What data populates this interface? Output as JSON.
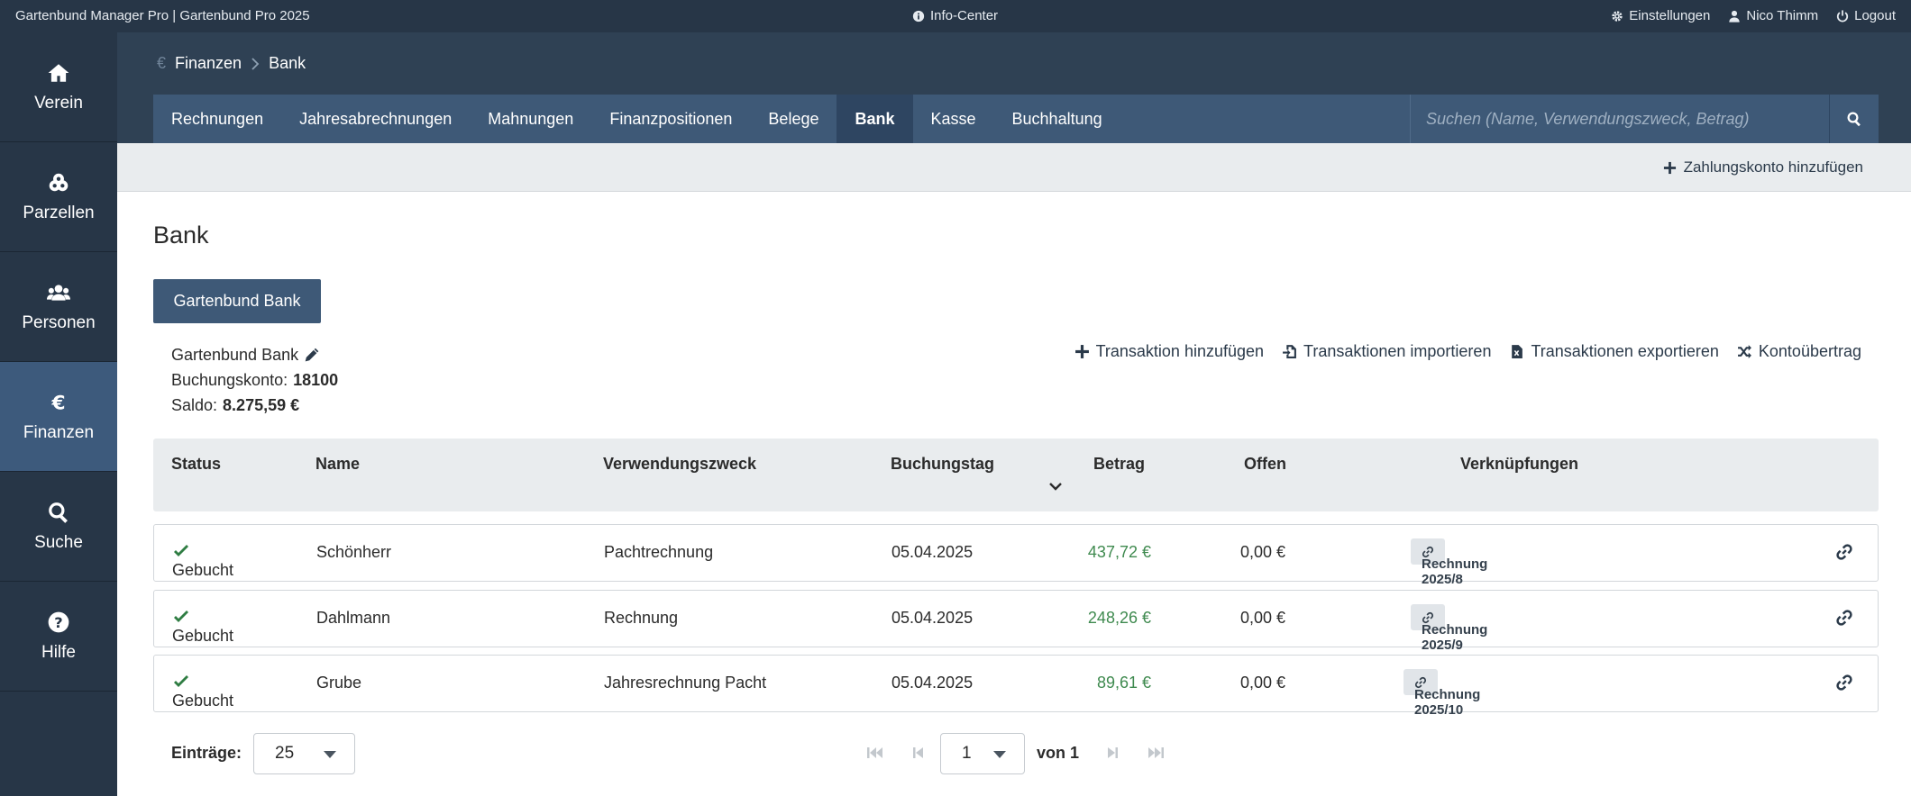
{
  "topbar": {
    "app_title": "Gartenbund Manager Pro | Gartenbund Pro 2025",
    "info_center": "Info-Center",
    "settings": "Einstellungen",
    "user": "Nico Thimm",
    "logout": "Logout"
  },
  "sidebar": {
    "items": [
      {
        "label": "Verein",
        "icon": "home-icon"
      },
      {
        "label": "Parzellen",
        "icon": "parcels-icon"
      },
      {
        "label": "Personen",
        "icon": "users-icon"
      },
      {
        "label": "Finanzen",
        "icon": "euro-icon",
        "active": true
      },
      {
        "label": "Suche",
        "icon": "search-icon"
      },
      {
        "label": "Hilfe",
        "icon": "help-icon"
      }
    ]
  },
  "breadcrumb": {
    "section": "Finanzen",
    "page": "Bank"
  },
  "tabs": [
    "Rechnungen",
    "Jahresabrechnungen",
    "Mahnungen",
    "Finanzpositionen",
    "Belege",
    "Bank",
    "Kasse",
    "Buchhaltung"
  ],
  "active_tab": "Bank",
  "search": {
    "placeholder": "Suchen (Name, Verwendungszweck, Betrag)"
  },
  "actionbar": {
    "add_account": "Zahlungskonto hinzufügen"
  },
  "page": {
    "title": "Bank",
    "account_button": "Gartenbund Bank",
    "account_name": "Gartenbund Bank",
    "booking_account_label": "Buchungskonto:",
    "booking_account_value": "18100",
    "balance_label": "Saldo:",
    "balance_value": "8.275,59 €"
  },
  "actions": {
    "add_transaction": "Transaktion hinzufügen",
    "import": "Transaktionen importieren",
    "export": "Transaktionen exportieren",
    "transfer": "Kontoübertrag"
  },
  "table": {
    "headers": {
      "status": "Status",
      "name": "Name",
      "purpose": "Verwendungszweck",
      "date": "Buchungstag",
      "amount": "Betrag",
      "open": "Offen",
      "links": "Verknüpfungen"
    },
    "rows": [
      {
        "status": "Gebucht",
        "name": "Schönherr",
        "purpose": "Pachtrechnung",
        "date": "05.04.2025",
        "amount": "437,72 €",
        "open": "0,00 €",
        "link": "Rechnung 2025/8"
      },
      {
        "status": "Gebucht",
        "name": "Dahlmann",
        "purpose": "Rechnung",
        "date": "05.04.2025",
        "amount": "248,26 €",
        "open": "0,00 €",
        "link": "Rechnung 2025/9"
      },
      {
        "status": "Gebucht",
        "name": "Grube",
        "purpose": "Jahresrechnung Pacht",
        "date": "05.04.2025",
        "amount": "89,61 €",
        "open": "0,00 €",
        "link": "Rechnung 2025/10"
      }
    ]
  },
  "footer": {
    "entries_label": "Einträge:",
    "entries_value": "25",
    "page_value": "1",
    "of_label": "von 1"
  },
  "colors": {
    "topbar": "#273647",
    "sidebar_active": "#3d5a7c",
    "tabbar": "#3e5977",
    "amount_green": "#3f8a4f",
    "status_check": "#2f7d43"
  }
}
